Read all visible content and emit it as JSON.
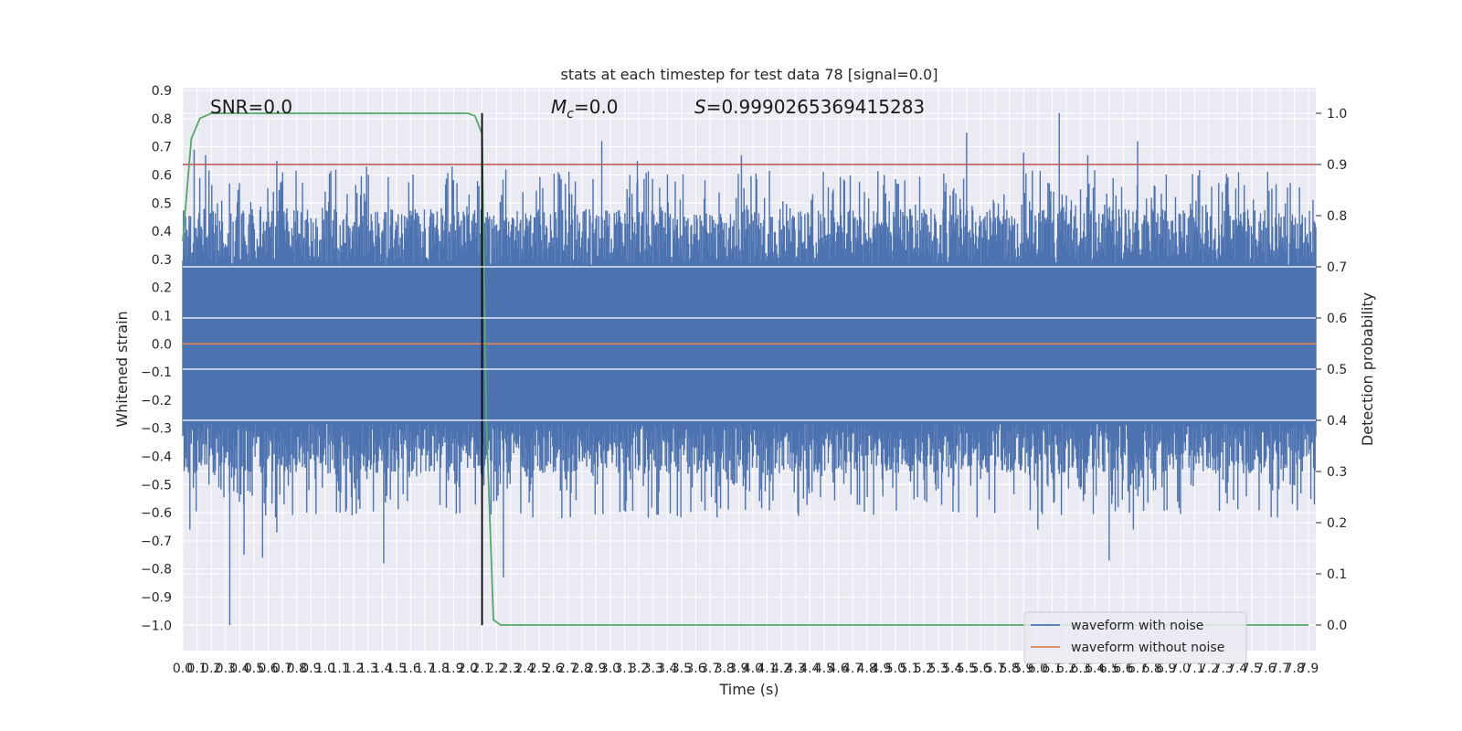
{
  "chart_data": {
    "type": "line",
    "title": "stats at each timestep for test data 78 [signal=0.0]",
    "xlabel": "Time (s)",
    "ylabel": "Whitened strain",
    "y2label": "Detection probability",
    "xlim": [
      0.0,
      7.95
    ],
    "ylim": [
      -1.09,
      0.91
    ],
    "y2lim": [
      -0.05,
      1.05
    ],
    "x_ticks": [
      0.0,
      0.1,
      0.2,
      0.3,
      0.4,
      0.5,
      0.6,
      0.7,
      0.8,
      0.9,
      1.0,
      1.1,
      1.2,
      1.3,
      1.4,
      1.5,
      1.6,
      1.7,
      1.8,
      1.9,
      2.0,
      2.1,
      2.2,
      2.3,
      2.4,
      2.5,
      2.6,
      2.7,
      2.8,
      2.9,
      3.0,
      3.1,
      3.2,
      3.3,
      3.4,
      3.5,
      3.6,
      3.7,
      3.8,
      3.9,
      4.0,
      4.1,
      4.2,
      4.3,
      4.4,
      4.5,
      4.6,
      4.7,
      4.8,
      4.9,
      5.0,
      5.1,
      5.2,
      5.3,
      5.4,
      5.5,
      5.6,
      5.7,
      5.8,
      5.9,
      6.0,
      6.1,
      6.2,
      6.3,
      6.4,
      6.5,
      6.6,
      6.7,
      6.8,
      6.9,
      7.0,
      7.1,
      7.2,
      7.3,
      7.4,
      7.5,
      7.6,
      7.7,
      7.8,
      7.9
    ],
    "x_tick_labels": [
      "0.0",
      "0.1",
      "0.2",
      "0.3",
      "0.4",
      "0.5",
      "0.6",
      "0.7",
      "0.8",
      "0.9",
      "1.0",
      "1.1",
      "1.2",
      "1.3",
      "1.4",
      "1.5",
      "1.6",
      "1.7",
      "1.8",
      "1.9",
      "2.0",
      "2.1",
      "2.2",
      "2.3",
      "2.4",
      "2.5",
      "2.6",
      "2.7",
      "2.8",
      "2.9",
      "3.0",
      "3.1",
      "3.2",
      "3.3",
      "3.4",
      "3.5",
      "3.6",
      "3.7",
      "3.8",
      "3.9",
      "4.0",
      "4.1",
      "4.2",
      "4.3",
      "4.4",
      "4.5",
      "4.6",
      "4.7",
      "4.8",
      "4.9",
      "5.0",
      "5.1",
      "5.2",
      "5.3",
      "5.4",
      "5.5",
      "5.6",
      "5.7",
      "5.8",
      "5.9",
      "6.0",
      "6.1",
      "6.2",
      "6.3",
      "6.4",
      "6.5",
      "6.6",
      "6.7",
      "6.8",
      "6.9",
      "7.0",
      "7.1",
      "7.2",
      "7.3",
      "7.4",
      "7.5",
      "7.6",
      "7.7",
      "7.8",
      "7.9"
    ],
    "y_ticks": [
      0.9,
      0.8,
      0.7,
      0.6,
      0.5,
      0.4,
      0.3,
      0.2,
      0.1,
      0.0,
      -0.1,
      -0.2,
      -0.3,
      -0.4,
      -0.5,
      -0.6,
      -0.7,
      -0.8,
      -0.9,
      -1.0
    ],
    "y_tick_labels": [
      "0.9",
      "0.8",
      "0.7",
      "0.6",
      "0.5",
      "0.4",
      "0.3",
      "0.2",
      "0.1",
      "0.0",
      "−0.1",
      "−0.2",
      "−0.3",
      "−0.4",
      "−0.5",
      "−0.6",
      "−0.7",
      "−0.8",
      "−0.9",
      "−1.0"
    ],
    "y2_ticks": [
      1.0,
      0.9,
      0.8,
      0.7,
      0.6,
      0.5,
      0.4,
      0.3,
      0.2,
      0.1,
      0.0
    ],
    "y2_tick_labels": [
      "1.0",
      "0.9",
      "0.8",
      "0.7",
      "0.6",
      "0.5",
      "0.4",
      "0.3",
      "0.2",
      "0.1",
      "0.0"
    ],
    "grid": true,
    "legend_position": "bottom-right",
    "series": [
      {
        "name": "waveform with noise",
        "color": "#4c72b0",
        "axis": "left",
        "x_range": [
          0.0,
          7.95
        ],
        "envelope_peaks": [
          {
            "x": 0.05,
            "y": -0.66
          },
          {
            "x": 0.08,
            "y": 0.69
          },
          {
            "x": 0.16,
            "y": 0.67
          },
          {
            "x": 0.33,
            "y": -1.0
          },
          {
            "x": 0.43,
            "y": -0.75
          },
          {
            "x": 0.56,
            "y": -0.76
          },
          {
            "x": 0.66,
            "y": 0.65
          },
          {
            "x": 0.66,
            "y": -0.67
          },
          {
            "x": 1.29,
            "y": 0.63
          },
          {
            "x": 1.41,
            "y": -0.78
          },
          {
            "x": 1.89,
            "y": 0.63
          },
          {
            "x": 2.25,
            "y": -0.83
          },
          {
            "x": 2.94,
            "y": 0.72
          },
          {
            "x": 3.19,
            "y": 0.65
          },
          {
            "x": 3.92,
            "y": 0.67
          },
          {
            "x": 5.5,
            "y": 0.75
          },
          {
            "x": 5.9,
            "y": 0.68
          },
          {
            "x": 6.15,
            "y": 0.82
          },
          {
            "x": 6.35,
            "y": 0.67
          },
          {
            "x": 6.5,
            "y": -0.77
          },
          {
            "x": 6.7,
            "y": 0.72
          },
          {
            "x": 6.0,
            "y": -0.66
          },
          {
            "x": 6.67,
            "y": -0.66
          }
        ]
      },
      {
        "name": "waveform without noise",
        "color": "#dd8452",
        "axis": "left",
        "x": [
          0.0,
          7.95
        ],
        "y": [
          0.0,
          0.0
        ]
      },
      {
        "name": "",
        "color": "#55a868",
        "axis": "right",
        "x": [
          0.0,
          0.06,
          0.12,
          0.2,
          0.3,
          1.0,
          1.5,
          2.0,
          2.05,
          2.1,
          2.13,
          2.18,
          2.23,
          2.3,
          3.0,
          5.0,
          7.9
        ],
        "y": [
          0.75,
          0.95,
          0.99,
          1.0,
          1.0,
          1.0,
          1.0,
          1.0,
          0.995,
          0.96,
          0.4,
          0.01,
          0.0,
          0.0,
          0.0,
          0.0,
          0.0
        ]
      }
    ],
    "reference_lines": [
      {
        "orientation": "horizontal",
        "axis": "right",
        "value": 0.9,
        "color": "#c44e52"
      },
      {
        "orientation": "vertical",
        "value": 2.1,
        "y_range": [
          -1.0,
          0.82
        ],
        "color": "#000000"
      }
    ],
    "annotations": [
      {
        "text": "SNR=0.0"
      },
      {
        "text_symbol": "M",
        "text_subscript": "c",
        "text": "=0.0"
      },
      {
        "text_symbol": "S",
        "text": "=0.9990265369415283"
      }
    ]
  }
}
